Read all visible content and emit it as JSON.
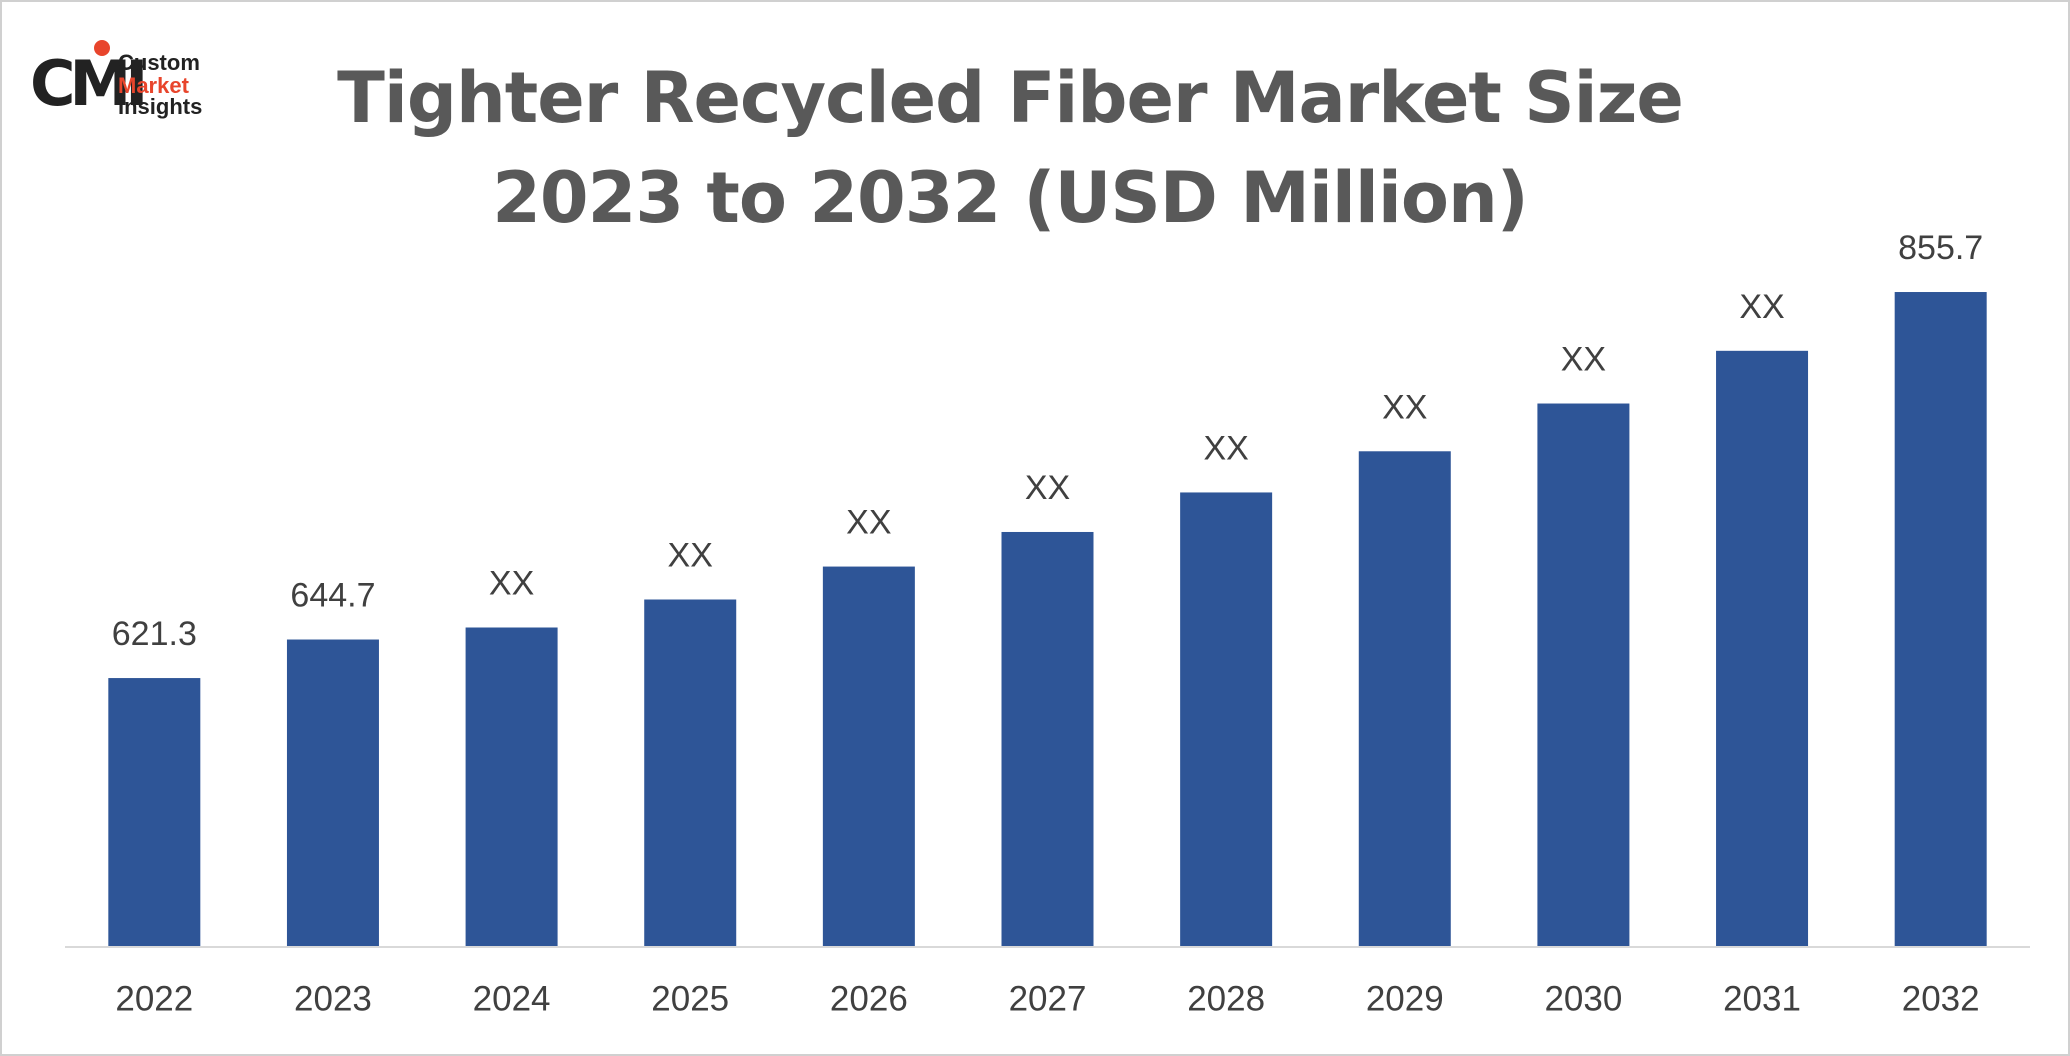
{
  "logo": {
    "mark": "CMI",
    "lines": [
      "Custom",
      "Market",
      "Insights"
    ]
  },
  "chart_data": {
    "type": "bar",
    "title": "Tighter Recycled Fiber Market Size 2023 to 2032 (USD Million)",
    "categories": [
      "2022",
      "2023",
      "2024",
      "2025",
      "2026",
      "2027",
      "2028",
      "2029",
      "2030",
      "2031",
      "2032"
    ],
    "values": [
      621.3,
      644.7,
      652,
      669,
      689,
      710,
      734,
      759,
      788,
      820,
      855.7
    ],
    "value_labels": [
      "621.3",
      "644.7",
      "XX",
      "XX",
      "XX",
      "XX",
      "XX",
      "XX",
      "XX",
      "XX",
      "855.7"
    ],
    "color": "#2e5597",
    "ylim": [
      458,
      880
    ]
  }
}
